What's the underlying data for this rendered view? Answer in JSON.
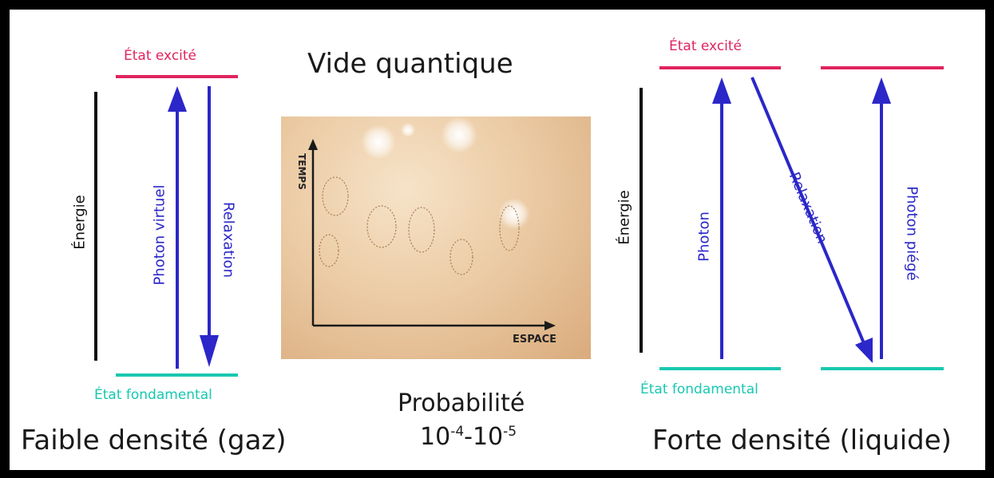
{
  "colors": {
    "excited": "#e0245e",
    "ground": "#18c8b0",
    "arrow": "#2b27c8",
    "energy_axis": "#111111"
  },
  "center": {
    "title": "Vide quantique",
    "y_axis": "TEMPS",
    "x_axis": "ESPACE",
    "probability_label": "Probabilité",
    "probability_value": {
      "base1": "10",
      "exp1": "-4",
      "sep": "-",
      "base2": "10",
      "exp2": "-5"
    }
  },
  "left": {
    "excited_label": "État excité",
    "ground_label": "État fondamental",
    "energy_label": "Énergie",
    "up_arrow_label": "Photon virtuel",
    "down_arrow_label": "Relaxation",
    "caption": "Faible densité (gaz)"
  },
  "right": {
    "excited_label": "État excité",
    "ground_label": "État fondamental",
    "energy_label": "Énergie",
    "up_arrow_label": "Photon",
    "diag_arrow_label": "Relaxation",
    "up2_arrow_label": "Photon piégé",
    "caption": "Forte densité (liquide)"
  }
}
